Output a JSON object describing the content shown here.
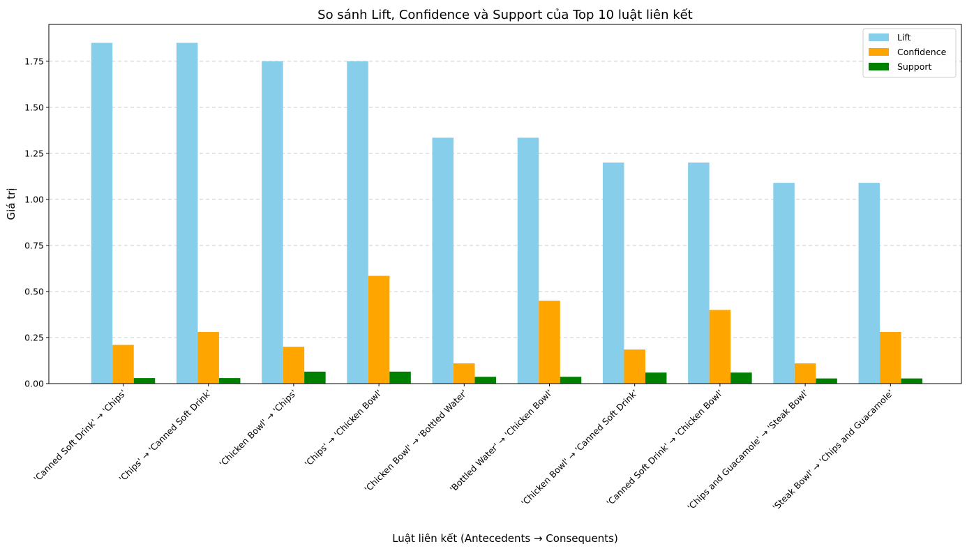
{
  "chart_data": {
    "type": "bar",
    "title": "So sánh Lift, Confidence và Support của Top 10 luật liên kết",
    "xlabel": "Luật liên kết (Antecedents → Consequents)",
    "ylabel": "Giá trị",
    "ylim": [
      0,
      1.95
    ],
    "yticks": [
      0.0,
      0.25,
      0.5,
      0.75,
      1.0,
      1.25,
      1.5,
      1.75
    ],
    "ytick_labels": [
      "0.00",
      "0.25",
      "0.50",
      "0.75",
      "1.00",
      "1.25",
      "1.50",
      "1.75"
    ],
    "grid": "y-dashed",
    "legend_position": "top-right",
    "categories": [
      "'Canned Soft Drink' → 'Chips'",
      "'Chips' → 'Canned Soft Drink'",
      "'Chicken Bowl' → 'Chips'",
      "'Chips' → 'Chicken Bowl'",
      "'Chicken Bowl' → 'Bottled Water'",
      "'Bottled Water' → 'Chicken Bowl'",
      "'Chicken Bowl' → 'Canned Soft Drink'",
      "'Canned Soft Drink' → 'Chicken Bowl'",
      "'Chips and Guacamole' → 'Steak Bowl'",
      "'Steak Bowl' → 'Chips and Guacamole'"
    ],
    "series": [
      {
        "name": "Lift",
        "color": "#87CEEB",
        "values": [
          1.85,
          1.85,
          1.75,
          1.75,
          1.335,
          1.335,
          1.2,
          1.2,
          1.09,
          1.09
        ]
      },
      {
        "name": "Confidence",
        "color": "#FFA500",
        "values": [
          0.21,
          0.28,
          0.2,
          0.585,
          0.11,
          0.45,
          0.185,
          0.4,
          0.11,
          0.28
        ]
      },
      {
        "name": "Support",
        "color": "#008000",
        "values": [
          0.03,
          0.03,
          0.065,
          0.065,
          0.037,
          0.037,
          0.06,
          0.06,
          0.028,
          0.028
        ]
      }
    ]
  }
}
